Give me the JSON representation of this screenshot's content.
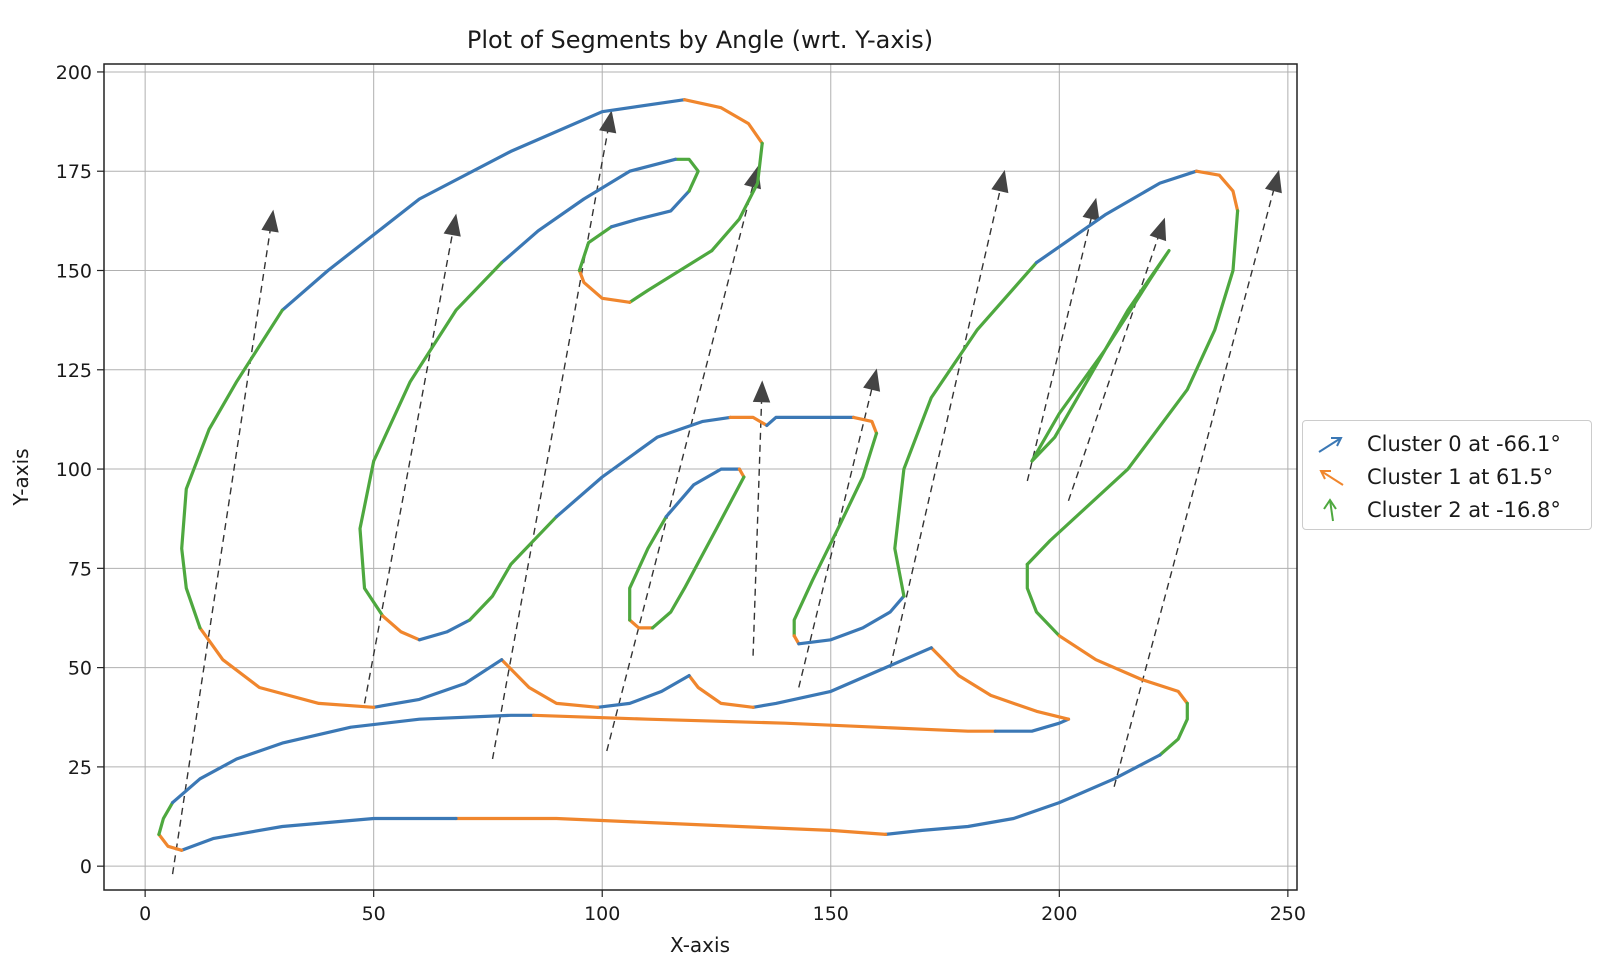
{
  "chart_data": {
    "type": "line",
    "title": "Plot of Segments by Angle (wrt. Y-axis)",
    "xlabel": "X-axis",
    "ylabel": "Y-axis",
    "xlim": [
      -9,
      252
    ],
    "ylim": [
      -6,
      202
    ],
    "xticks": [
      0,
      50,
      100,
      150,
      200,
      250
    ],
    "yticks": [
      0,
      25,
      50,
      75,
      100,
      125,
      150,
      175,
      200
    ],
    "grid": true,
    "legend_position": "right",
    "series": [
      {
        "name": "Cluster 0 at -66.1°",
        "color": "#3b78b5",
        "icon": "arrow-up-right"
      },
      {
        "name": "Cluster 1 at 61.5°",
        "color": "#f0862d",
        "icon": "arrow-up-left"
      },
      {
        "name": "Cluster 2 at -16.8°",
        "color": "#4ea83f",
        "icon": "arrow-up"
      }
    ],
    "segments": [
      {
        "c": 0,
        "pts": [
          [
            30,
            140
          ],
          [
            40,
            150
          ],
          [
            60,
            168
          ],
          [
            80,
            180
          ],
          [
            100,
            190
          ],
          [
            118,
            193
          ]
        ]
      },
      {
        "c": 1,
        "pts": [
          [
            118,
            193
          ],
          [
            126,
            191
          ],
          [
            132,
            187
          ],
          [
            135,
            182
          ]
        ]
      },
      {
        "c": 2,
        "pts": [
          [
            135,
            182
          ],
          [
            134,
            172
          ],
          [
            130,
            163
          ],
          [
            124,
            155
          ]
        ]
      },
      {
        "c": 2,
        "pts": [
          [
            124,
            155
          ],
          [
            110,
            145
          ],
          [
            106,
            142
          ]
        ]
      },
      {
        "c": 1,
        "pts": [
          [
            106,
            142
          ],
          [
            100,
            143
          ],
          [
            96,
            147
          ],
          [
            95,
            150
          ]
        ]
      },
      {
        "c": 2,
        "pts": [
          [
            95,
            150
          ],
          [
            97,
            157
          ],
          [
            102,
            161
          ]
        ]
      },
      {
        "c": 0,
        "pts": [
          [
            102,
            161
          ],
          [
            108,
            163
          ],
          [
            115,
            165
          ],
          [
            119,
            170
          ]
        ]
      },
      {
        "c": 2,
        "pts": [
          [
            119,
            170
          ],
          [
            121,
            175
          ],
          [
            119,
            178
          ],
          [
            116,
            178
          ]
        ]
      },
      {
        "c": 0,
        "pts": [
          [
            116,
            178
          ],
          [
            106,
            175
          ],
          [
            96,
            168
          ],
          [
            86,
            160
          ],
          [
            78,
            152
          ]
        ]
      },
      {
        "c": 2,
        "pts": [
          [
            78,
            152
          ],
          [
            68,
            140
          ],
          [
            58,
            122
          ],
          [
            50,
            102
          ],
          [
            47,
            85
          ],
          [
            48,
            70
          ],
          [
            52,
            63
          ]
        ]
      },
      {
        "c": 1,
        "pts": [
          [
            52,
            63
          ],
          [
            56,
            59
          ],
          [
            60,
            57
          ]
        ]
      },
      {
        "c": 0,
        "pts": [
          [
            60,
            57
          ],
          [
            66,
            59
          ],
          [
            71,
            62
          ]
        ]
      },
      {
        "c": 2,
        "pts": [
          [
            71,
            62
          ],
          [
            76,
            68
          ],
          [
            80,
            76
          ],
          [
            90,
            88
          ]
        ]
      },
      {
        "c": 0,
        "pts": [
          [
            90,
            88
          ],
          [
            100,
            98
          ],
          [
            112,
            108
          ],
          [
            122,
            112
          ],
          [
            128,
            113
          ]
        ]
      },
      {
        "c": 1,
        "pts": [
          [
            128,
            113
          ],
          [
            133,
            113
          ],
          [
            136,
            111
          ]
        ]
      },
      {
        "c": 0,
        "pts": [
          [
            136,
            111
          ],
          [
            138,
            113
          ],
          [
            142,
            113
          ],
          [
            150,
            113
          ],
          [
            155,
            113
          ]
        ]
      },
      {
        "c": 1,
        "pts": [
          [
            155,
            113
          ],
          [
            159,
            112
          ],
          [
            160,
            109
          ]
        ]
      },
      {
        "c": 2,
        "pts": [
          [
            160,
            109
          ],
          [
            157,
            98
          ],
          [
            152,
            86
          ],
          [
            146,
            72
          ],
          [
            142,
            62
          ],
          [
            142,
            58
          ]
        ]
      },
      {
        "c": 1,
        "pts": [
          [
            142,
            58
          ],
          [
            143,
            56
          ]
        ]
      },
      {
        "c": 0,
        "pts": [
          [
            143,
            56
          ],
          [
            150,
            57
          ],
          [
            157,
            60
          ],
          [
            163,
            64
          ],
          [
            166,
            68
          ]
        ]
      },
      {
        "c": 2,
        "pts": [
          [
            166,
            68
          ],
          [
            164,
            80
          ],
          [
            166,
            100
          ],
          [
            172,
            118
          ],
          [
            182,
            135
          ],
          [
            195,
            152
          ]
        ]
      },
      {
        "c": 0,
        "pts": [
          [
            195,
            152
          ],
          [
            210,
            164
          ],
          [
            222,
            172
          ],
          [
            230,
            175
          ]
        ]
      },
      {
        "c": 1,
        "pts": [
          [
            230,
            175
          ],
          [
            235,
            174
          ],
          [
            238,
            170
          ],
          [
            239,
            165
          ]
        ]
      },
      {
        "c": 2,
        "pts": [
          [
            239,
            165
          ],
          [
            238,
            150
          ],
          [
            234,
            135
          ],
          [
            228,
            120
          ],
          [
            215,
            100
          ],
          [
            198,
            82
          ],
          [
            193,
            76
          ]
        ]
      },
      {
        "c": 2,
        "pts": [
          [
            193,
            76
          ],
          [
            193,
            70
          ],
          [
            195,
            64
          ],
          [
            200,
            58
          ]
        ]
      },
      {
        "c": 1,
        "pts": [
          [
            200,
            58
          ],
          [
            208,
            52
          ],
          [
            218,
            47
          ],
          [
            226,
            44
          ],
          [
            228,
            41
          ]
        ]
      },
      {
        "c": 2,
        "pts": [
          [
            228,
            41
          ],
          [
            228,
            37
          ],
          [
            226,
            32
          ],
          [
            222,
            28
          ]
        ]
      },
      {
        "c": 0,
        "pts": [
          [
            222,
            28
          ],
          [
            212,
            22
          ],
          [
            200,
            16
          ],
          [
            190,
            12
          ],
          [
            180,
            10
          ],
          [
            170,
            9
          ],
          [
            162,
            8
          ]
        ]
      },
      {
        "c": 1,
        "pts": [
          [
            162,
            8
          ],
          [
            150,
            9
          ],
          [
            130,
            10
          ],
          [
            110,
            11
          ],
          [
            90,
            12
          ],
          [
            68,
            12
          ]
        ]
      },
      {
        "c": 0,
        "pts": [
          [
            68,
            12
          ],
          [
            50,
            12
          ],
          [
            30,
            10
          ],
          [
            15,
            7
          ],
          [
            8,
            4
          ]
        ]
      },
      {
        "c": 1,
        "pts": [
          [
            8,
            4
          ],
          [
            5,
            5
          ],
          [
            3,
            8
          ]
        ]
      },
      {
        "c": 2,
        "pts": [
          [
            3,
            8
          ],
          [
            4,
            12
          ],
          [
            6,
            16
          ]
        ]
      },
      {
        "c": 0,
        "pts": [
          [
            6,
            16
          ],
          [
            12,
            22
          ],
          [
            20,
            27
          ],
          [
            30,
            31
          ],
          [
            45,
            35
          ],
          [
            60,
            37
          ],
          [
            80,
            38
          ],
          [
            85,
            38
          ]
        ]
      },
      {
        "c": 1,
        "pts": [
          [
            85,
            38
          ],
          [
            110,
            37
          ],
          [
            140,
            36
          ],
          [
            160,
            35
          ],
          [
            180,
            34
          ],
          [
            186,
            34
          ]
        ]
      },
      {
        "c": 0,
        "pts": [
          [
            186,
            34
          ],
          [
            194,
            34
          ],
          [
            200,
            36
          ],
          [
            202,
            37
          ]
        ]
      },
      {
        "c": 1,
        "pts": [
          [
            202,
            37
          ],
          [
            195,
            39
          ],
          [
            185,
            43
          ],
          [
            178,
            48
          ],
          [
            172,
            55
          ]
        ]
      },
      {
        "c": 0,
        "pts": [
          [
            172,
            55
          ],
          [
            162,
            50
          ],
          [
            150,
            44
          ],
          [
            138,
            41
          ],
          [
            133,
            40
          ]
        ]
      },
      {
        "c": 1,
        "pts": [
          [
            133,
            40
          ],
          [
            126,
            41
          ],
          [
            121,
            45
          ],
          [
            119,
            48
          ]
        ]
      },
      {
        "c": 0,
        "pts": [
          [
            119,
            48
          ],
          [
            113,
            44
          ],
          [
            106,
            41
          ],
          [
            99,
            40
          ]
        ]
      },
      {
        "c": 1,
        "pts": [
          [
            99,
            40
          ],
          [
            90,
            41
          ],
          [
            84,
            45
          ],
          [
            78,
            52
          ]
        ]
      },
      {
        "c": 0,
        "pts": [
          [
            78,
            52
          ],
          [
            70,
            46
          ],
          [
            60,
            42
          ],
          [
            50,
            40
          ]
        ]
      },
      {
        "c": 1,
        "pts": [
          [
            50,
            40
          ],
          [
            38,
            41
          ],
          [
            25,
            45
          ],
          [
            17,
            52
          ],
          [
            12,
            60
          ]
        ]
      },
      {
        "c": 2,
        "pts": [
          [
            12,
            60
          ],
          [
            9,
            70
          ],
          [
            8,
            80
          ],
          [
            9,
            95
          ],
          [
            14,
            110
          ],
          [
            20,
            122
          ],
          [
            30,
            140
          ]
        ]
      },
      {
        "c": 1,
        "pts": [
          [
            106,
            62
          ],
          [
            108,
            60
          ],
          [
            111,
            60
          ]
        ]
      },
      {
        "c": 2,
        "pts": [
          [
            106,
            62
          ],
          [
            106,
            70
          ],
          [
            110,
            80
          ],
          [
            114,
            88
          ]
        ]
      },
      {
        "c": 0,
        "pts": [
          [
            114,
            88
          ],
          [
            120,
            96
          ],
          [
            126,
            100
          ],
          [
            130,
            100
          ]
        ]
      },
      {
        "c": 1,
        "pts": [
          [
            130,
            100
          ],
          [
            131,
            98
          ]
        ]
      },
      {
        "c": 2,
        "pts": [
          [
            131,
            98
          ],
          [
            125,
            85
          ],
          [
            118,
            70
          ],
          [
            115,
            64
          ],
          [
            111,
            60
          ]
        ]
      },
      {
        "c": 2,
        "pts": [
          [
            194,
            102
          ],
          [
            200,
            114
          ],
          [
            210,
            130
          ],
          [
            220,
            148
          ],
          [
            224,
            155
          ],
          [
            215,
            140
          ],
          [
            205,
            120
          ],
          [
            199,
            108
          ],
          [
            194,
            102
          ]
        ]
      }
    ],
    "arrows": [
      [
        6,
        -2,
        28,
        165
      ],
      [
        48,
        41,
        68,
        164
      ],
      [
        76,
        27,
        102,
        190
      ],
      [
        101,
        29,
        134,
        176
      ],
      [
        133,
        53,
        135,
        122
      ],
      [
        143,
        45,
        160,
        125
      ],
      [
        163,
        50,
        188,
        175
      ],
      [
        193,
        97,
        208,
        168
      ],
      [
        202,
        92,
        223,
        163
      ],
      [
        212,
        20,
        248,
        175
      ]
    ]
  }
}
